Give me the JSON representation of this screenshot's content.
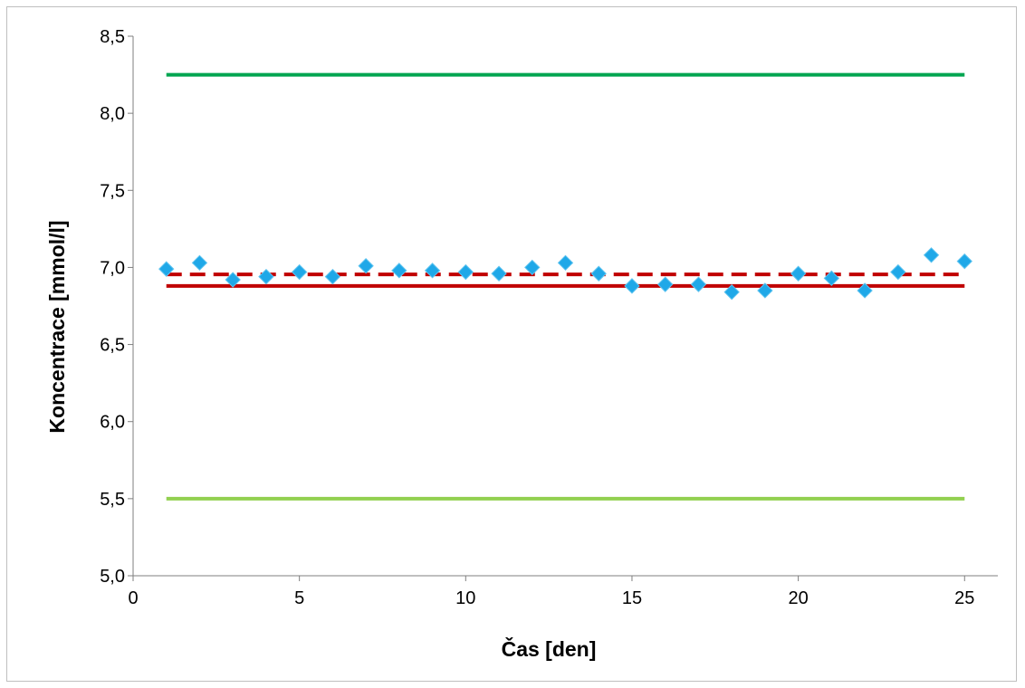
{
  "chart_data": {
    "type": "scatter",
    "xlabel": "Čas [den]",
    "ylabel": "Koncentrace [mmol/l]",
    "xlim": [
      0,
      26
    ],
    "ylim": [
      5.0,
      8.5
    ],
    "x_ticks": [
      0,
      5,
      10,
      15,
      20,
      25
    ],
    "x_tick_labels": [
      "0",
      "5",
      "10",
      "15",
      "20",
      "25"
    ],
    "y_ticks": [
      5.0,
      5.5,
      6.0,
      6.5,
      7.0,
      7.5,
      8.0,
      8.5
    ],
    "y_tick_labels": [
      "5,0",
      "5,5",
      "6,0",
      "6,5",
      "7,0",
      "7,5",
      "8,0",
      "8,5"
    ],
    "grid": false,
    "legend": "none",
    "series": [
      {
        "kind": "scatter",
        "marker": "diamond",
        "color": "#1fa8e8",
        "x": [
          1,
          2,
          3,
          4,
          5,
          6,
          7,
          8,
          9,
          10,
          11,
          12,
          13,
          14,
          15,
          16,
          17,
          18,
          19,
          20,
          21,
          22,
          23,
          24,
          25
        ],
        "values": [
          6.99,
          7.03,
          6.92,
          6.94,
          6.97,
          6.94,
          7.01,
          6.98,
          6.98,
          6.97,
          6.96,
          7.0,
          7.03,
          6.96,
          6.88,
          6.89,
          6.89,
          6.84,
          6.85,
          6.96,
          6.93,
          6.85,
          6.97,
          7.08,
          7.04
        ]
      },
      {
        "kind": "line",
        "style": "solid",
        "color": "#00a550",
        "x": [
          1,
          25
        ],
        "values": [
          8.25,
          8.25
        ]
      },
      {
        "kind": "line",
        "style": "solid",
        "color": "#92d050",
        "x": [
          1,
          25
        ],
        "values": [
          5.5,
          5.5
        ]
      },
      {
        "kind": "line",
        "style": "solid",
        "color": "#c00000",
        "x": [
          1,
          25
        ],
        "values": [
          6.88,
          6.88
        ]
      },
      {
        "kind": "line",
        "style": "dashed",
        "color": "#c00000",
        "x": [
          1,
          25
        ],
        "values": [
          6.955,
          6.955
        ]
      }
    ]
  }
}
